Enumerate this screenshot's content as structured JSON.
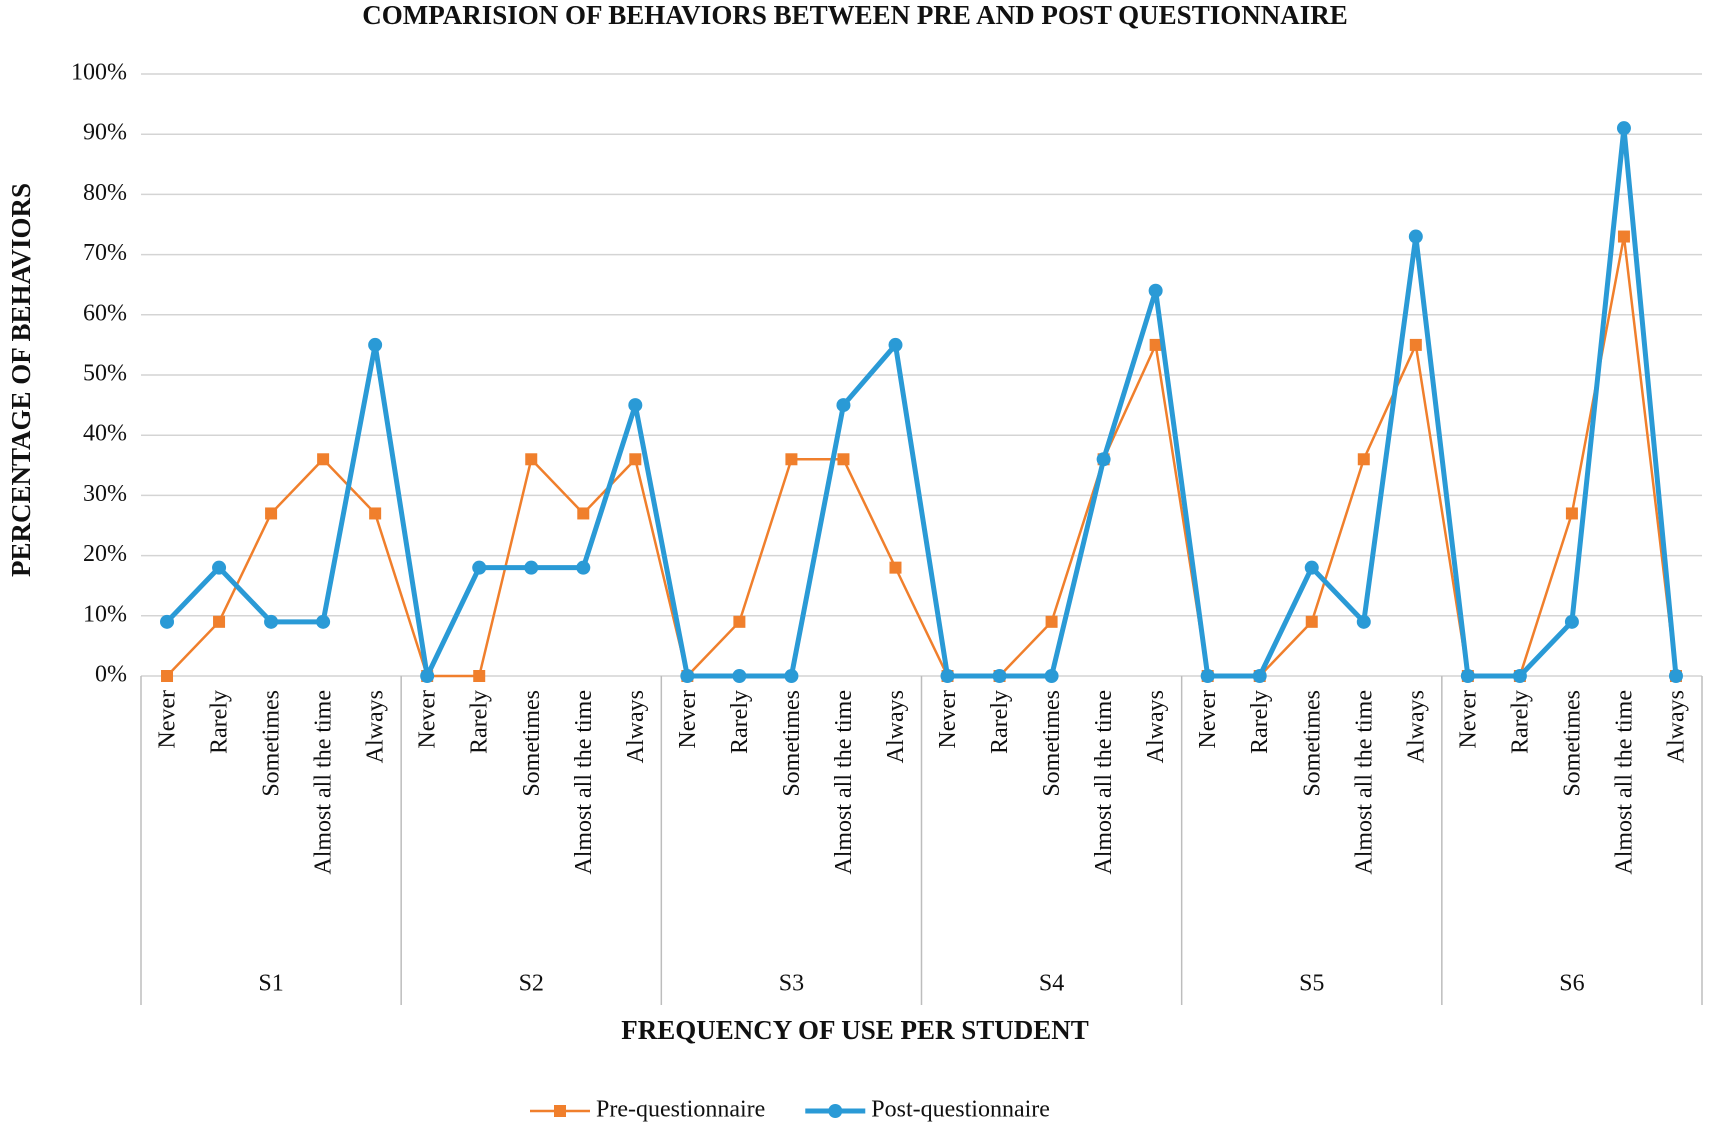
{
  "chart_data": {
    "type": "line",
    "title": "COMPARISION OF BEHAVIORS BETWEEN PRE AND POST QUESTIONNAIRE",
    "x_label": "FREQUENCY OF USE PER STUDENT",
    "y_label": "PERCENTAGE OF BEHAVIORS",
    "groups": [
      "S1",
      "S2",
      "S3",
      "S4",
      "S5",
      "S6"
    ],
    "categories": [
      "Never",
      "Rarely",
      "Sometimes",
      "Almost all the time",
      "Always",
      "Never",
      "Rarely",
      "Sometimes",
      "Almost all the time",
      "Always",
      "Never",
      "Rarely",
      "Sometimes",
      "Almost all the time",
      "Always",
      "Never",
      "Rarely",
      "Sometimes",
      "Almost all the time",
      "Always",
      "Never",
      "Rarely",
      "Sometimes",
      "Almost all the time",
      "Always",
      "Never",
      "Rarely",
      "Sometimes",
      "Almost all the time",
      "Always"
    ],
    "series": [
      {
        "name": "Pre-questionnaire",
        "color": "#f07f2c",
        "marker": "square",
        "values": [
          0,
          9,
          27,
          36,
          27,
          0,
          0,
          36,
          27,
          36,
          0,
          9,
          36,
          36,
          18,
          0,
          0,
          9,
          36,
          55,
          0,
          0,
          9,
          36,
          55,
          0,
          0,
          27,
          73,
          0
        ]
      },
      {
        "name": "Post-questionnaire",
        "color": "#2a9ad6",
        "marker": "circle",
        "values": [
          9,
          18,
          9,
          9,
          55,
          0,
          18,
          18,
          18,
          45,
          0,
          0,
          0,
          45,
          55,
          0,
          0,
          0,
          36,
          64,
          0,
          0,
          18,
          9,
          73,
          0,
          0,
          9,
          91,
          0
        ]
      }
    ],
    "ylim": [
      0,
      100
    ],
    "yticks": [
      {
        "value": 0,
        "label": "0%"
      },
      {
        "value": 10,
        "label": "10%"
      },
      {
        "value": 20,
        "label": "20%"
      },
      {
        "value": 30,
        "label": "30%"
      },
      {
        "value": 40,
        "label": "40%"
      },
      {
        "value": 50,
        "label": "50%"
      },
      {
        "value": 60,
        "label": "60%"
      },
      {
        "value": 70,
        "label": "70%"
      },
      {
        "value": 80,
        "label": "80%"
      },
      {
        "value": 90,
        "label": "90%"
      },
      {
        "value": 100,
        "label": "100%"
      }
    ],
    "grid": true,
    "legend": "bottom"
  }
}
